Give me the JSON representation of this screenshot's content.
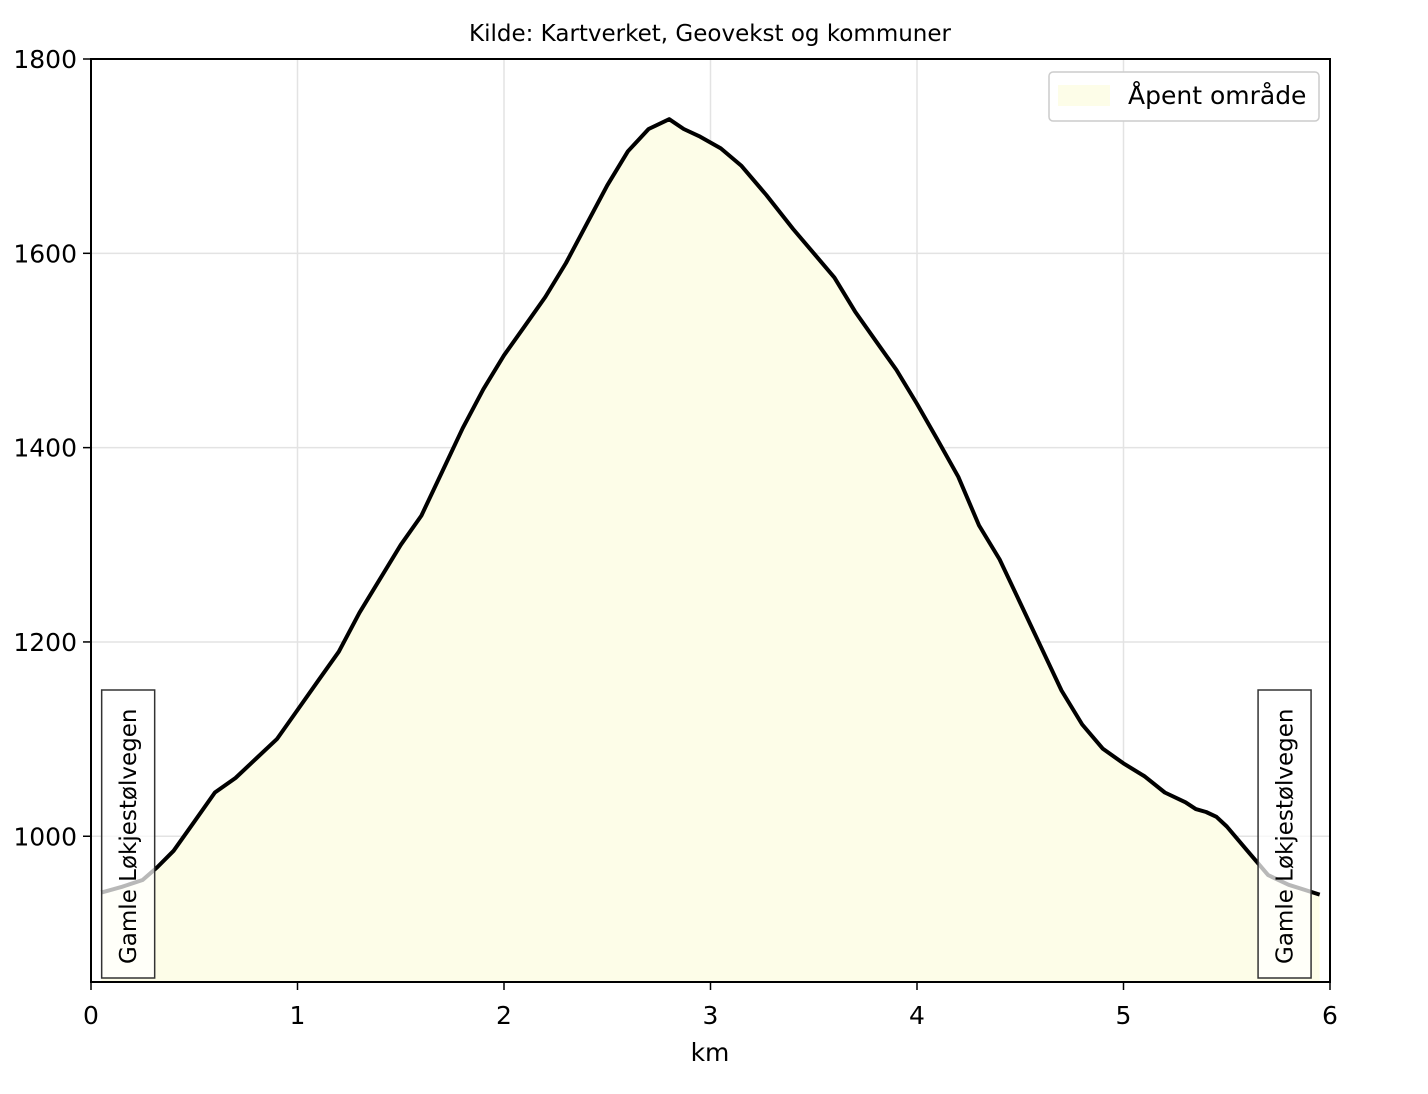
{
  "chart_data": {
    "type": "area",
    "title": "Kilde: Kartverket, Geovekst og kommuner",
    "xlabel": "km",
    "ylabel": "",
    "xlim": [
      0,
      6
    ],
    "ylim": [
      850,
      1800
    ],
    "xticks": [
      "0",
      "1",
      "2",
      "3",
      "4",
      "5",
      "6"
    ],
    "yticks": [
      "1000",
      "1200",
      "1400",
      "1600",
      "1800"
    ],
    "grid": true,
    "legend_position": "top-right",
    "series": [
      {
        "name": "Åpent område",
        "color": "#fdfde8",
        "line_color": "#000000",
        "x": [
          0.05,
          0.15,
          0.25,
          0.32,
          0.4,
          0.5,
          0.6,
          0.7,
          0.8,
          0.9,
          1.0,
          1.1,
          1.2,
          1.3,
          1.4,
          1.5,
          1.6,
          1.7,
          1.8,
          1.9,
          2.0,
          2.1,
          2.2,
          2.3,
          2.4,
          2.5,
          2.6,
          2.7,
          2.8,
          2.87,
          2.95,
          3.05,
          3.15,
          3.27,
          3.4,
          3.5,
          3.6,
          3.7,
          3.8,
          3.9,
          4.0,
          4.1,
          4.2,
          4.3,
          4.4,
          4.5,
          4.6,
          4.7,
          4.8,
          4.9,
          5.0,
          5.1,
          5.2,
          5.3,
          5.35,
          5.4,
          5.45,
          5.5,
          5.6,
          5.7,
          5.8,
          5.95
        ],
        "y": [
          942,
          948,
          955,
          968,
          985,
          1015,
          1045,
          1060,
          1080,
          1100,
          1130,
          1160,
          1190,
          1230,
          1265,
          1300,
          1330,
          1375,
          1420,
          1460,
          1495,
          1525,
          1555,
          1590,
          1630,
          1670,
          1705,
          1728,
          1738,
          1728,
          1720,
          1708,
          1690,
          1660,
          1625,
          1600,
          1575,
          1540,
          1510,
          1480,
          1445,
          1408,
          1370,
          1320,
          1285,
          1240,
          1195,
          1150,
          1115,
          1090,
          1075,
          1062,
          1045,
          1035,
          1028,
          1025,
          1020,
          1010,
          985,
          960,
          950,
          940
        ]
      }
    ],
    "annotations": [
      {
        "text": "Gamle Løkjestølvegen",
        "x": 0.18
      },
      {
        "text": "Gamle Løkjestølvegen",
        "x": 5.78
      }
    ]
  }
}
